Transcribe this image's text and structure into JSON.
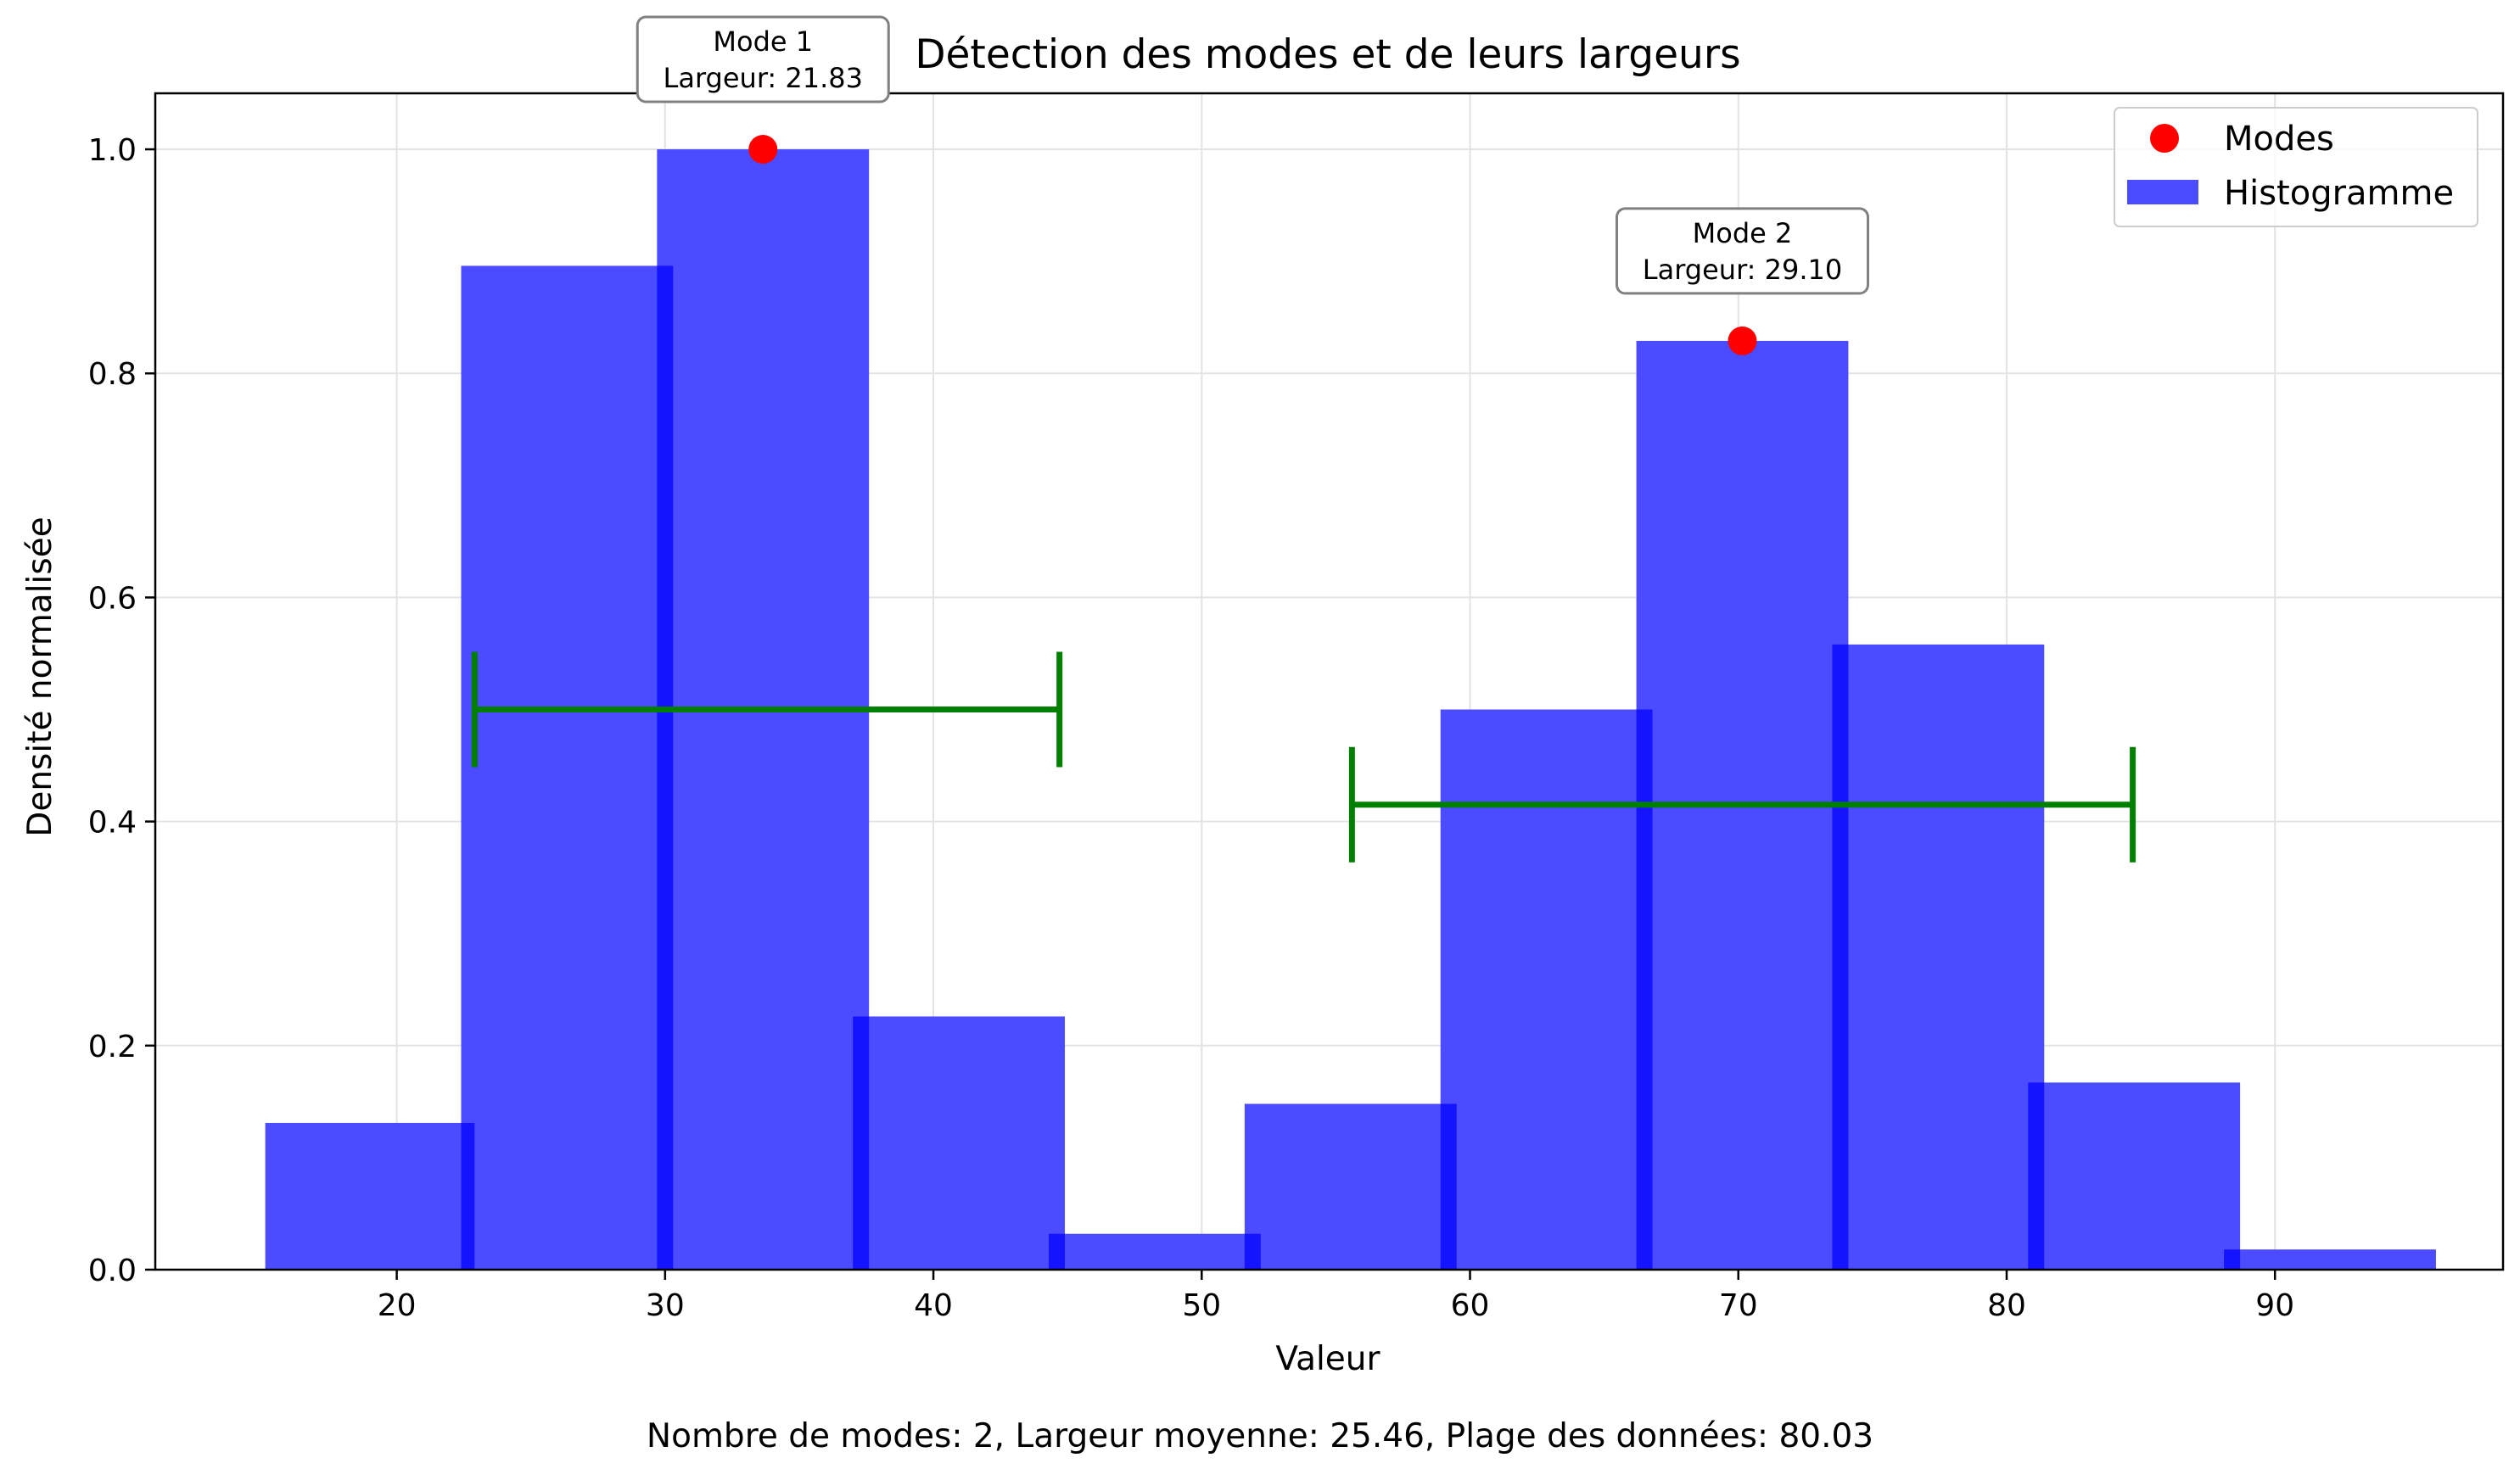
{
  "chart_data": {
    "type": "bar",
    "title": "Détection des modes et de leurs largeurs",
    "xlabel": "Valeur",
    "ylabel": "Densité normalisée",
    "xlim": [
      11,
      98.5
    ],
    "ylim": [
      0,
      1.05
    ],
    "xticks": [
      20,
      30,
      40,
      50,
      60,
      70,
      80,
      90
    ],
    "yticks": [
      0.0,
      0.2,
      0.4,
      0.6,
      0.8,
      1.0
    ],
    "ytick_labels": [
      "0.0",
      "0.2",
      "0.4",
      "0.6",
      "0.8",
      "1.0"
    ],
    "grid": true,
    "histogram_bars": [
      {
        "x0": 15.1,
        "x1": 22.9,
        "value": 0.131
      },
      {
        "x0": 22.4,
        "x1": 30.3,
        "value": 0.896
      },
      {
        "x0": 29.7,
        "x1": 37.6,
        "value": 1.0
      },
      {
        "x0": 37.0,
        "x1": 44.9,
        "value": 0.226
      },
      {
        "x0": 44.3,
        "x1": 52.2,
        "value": 0.032
      },
      {
        "x0": 51.6,
        "x1": 59.5,
        "value": 0.148
      },
      {
        "x0": 58.9,
        "x1": 66.8,
        "value": 0.5
      },
      {
        "x0": 66.2,
        "x1": 74.1,
        "value": 0.829
      },
      {
        "x0": 73.5,
        "x1": 81.4,
        "value": 0.558
      },
      {
        "x0": 80.8,
        "x1": 88.7,
        "value": 0.167
      },
      {
        "x0": 88.1,
        "x1": 96.0,
        "value": 0.018
      }
    ],
    "modes": [
      {
        "x": 33.65,
        "y": 1.0,
        "label_line1": "Mode 1",
        "label_line2": "Largeur: 21.83",
        "width_left": 22.9,
        "width_right": 44.7,
        "width_y": 0.5
      },
      {
        "x": 70.15,
        "y": 0.829,
        "label_line1": "Mode 2",
        "label_line2": "Largeur: 29.10",
        "width_left": 55.6,
        "width_right": 84.7,
        "width_y": 0.415
      }
    ],
    "legend": {
      "position": "top-right",
      "entries": [
        {
          "label": "Modes",
          "kind": "marker",
          "color": "#ff0000"
        },
        {
          "label": "Histogramme",
          "kind": "patch",
          "color": "#4b4bff"
        }
      ]
    },
    "colors": {
      "bar_fill": "#4b4bff",
      "bar_edge": "#1414ff",
      "mode_marker": "#ff0000",
      "width_line": "#007f00",
      "grid": "#e3e3e3"
    }
  },
  "footer": "Nombre de modes: 2, Largeur moyenne: 25.46, Plage des données: 80.03"
}
